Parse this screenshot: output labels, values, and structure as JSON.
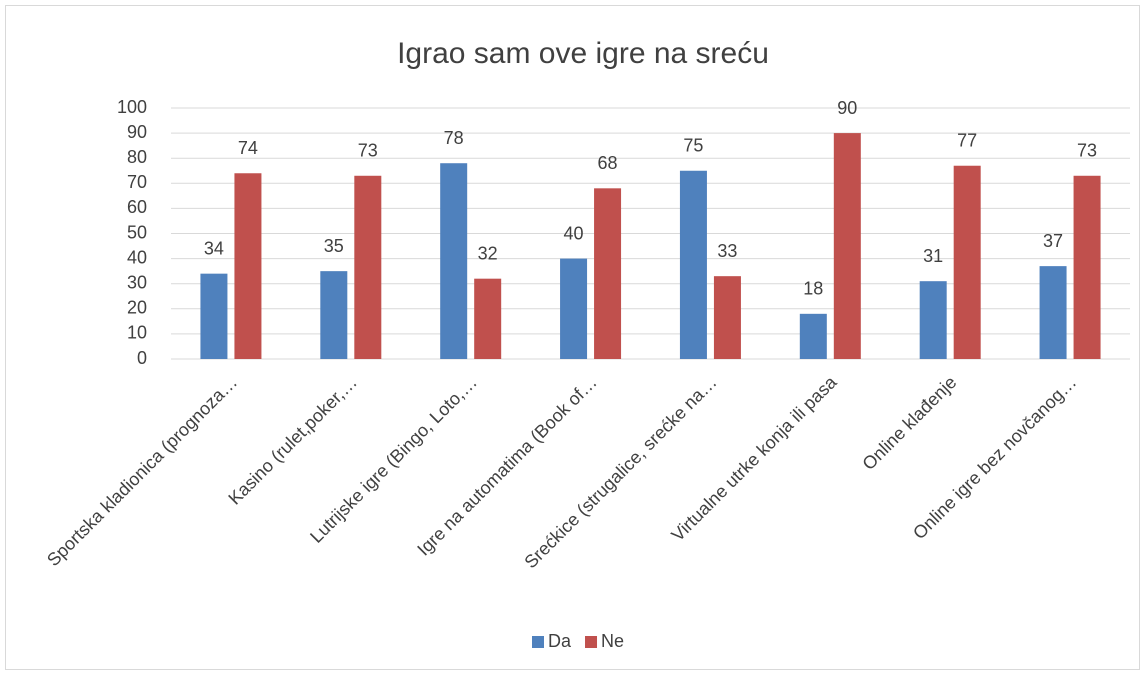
{
  "chart_data": {
    "type": "bar",
    "title": "Igrao sam ove igre na sreću",
    "categories": [
      "Sportska kladionica (prognoza…",
      "Kasino (rulet,poker,…",
      "Lutrijske igre (Bingo, Loto,…",
      "Igre na automatima (Book of…",
      "Srećkice (strugalice, srećke na…",
      "Virtualne utrke konja ili pasa",
      "Online klađenje",
      "Online igre bez novčanog…"
    ],
    "series": [
      {
        "name": "Da",
        "color": "#4f81bd",
        "values": [
          34,
          35,
          78,
          40,
          75,
          18,
          31,
          37
        ]
      },
      {
        "name": "Ne",
        "color": "#c0504d",
        "values": [
          74,
          73,
          32,
          68,
          33,
          90,
          77,
          73
        ]
      }
    ],
    "ylim": [
      0,
      100
    ],
    "yticks": [
      0,
      10,
      20,
      30,
      40,
      50,
      60,
      70,
      80,
      90,
      100
    ],
    "grid": true,
    "legend": "bottom"
  }
}
